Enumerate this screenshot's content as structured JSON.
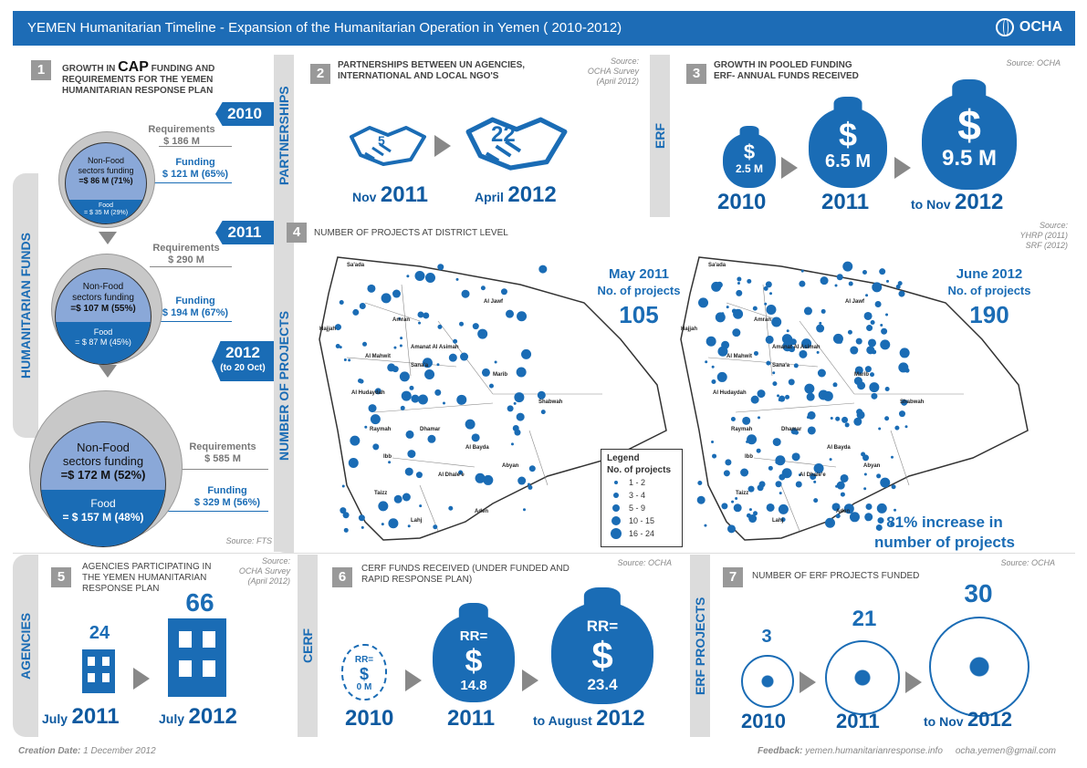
{
  "header": {
    "title": "YEMEN Humanitarian Timeline - Expansion of the Humanitarian Operation in Yemen ( 2010-2012)",
    "logo": "OCHA",
    "logo_icon": "un-globe-icon"
  },
  "section1": {
    "num": "1",
    "title_a": "GROWTH IN ",
    "title_cap": "CAP",
    "title_b": " FUNDING AND REQUIREMENTS FOR THE YEMEN HUMANITARIAN RESPONSE PLAN",
    "tab": "HUMANITARIAN FUNDS",
    "source": "Source: FTS",
    "years": [
      {
        "year": "2010",
        "year2": "",
        "req_label": "Requirements",
        "req": "$ 186 M",
        "fund_label": "Funding",
        "fund": "$ 121 M (65%)",
        "nonfood_a": "Non-Food",
        "nonfood_b": "sectors funding",
        "nonfood_val": "=$ 86 M (71%)",
        "food_label": "Food",
        "food_val": "= $ 35 M (29%)"
      },
      {
        "year": "2011",
        "year2": "",
        "req_label": "Requirements",
        "req": "$ 290 M",
        "fund_label": "Funding",
        "fund": "$ 194 M (67%)",
        "nonfood_a": "Non-Food",
        "nonfood_b": "sectors funding",
        "nonfood_val": "=$ 107 M (55%)",
        "food_label": "Food",
        "food_val": "= $ 87 M (45%)"
      },
      {
        "year": "2012",
        "year2": "(to 20 Oct)",
        "req_label": "Requirements",
        "req": "$ 585 M",
        "fund_label": "Funding",
        "fund": "$ 329 M (56%)",
        "nonfood_a": "Non-Food",
        "nonfood_b": "sectors funding",
        "nonfood_val": "=$ 172 M (52%)",
        "food_label": "Food",
        "food_val": "= $ 157 M (48%)"
      }
    ]
  },
  "section2": {
    "num": "2",
    "title": "PARTNERSHIPS BETWEEN UN AGENCIES, INTERNATIONAL AND LOCAL NGO's",
    "source_a": "Source:",
    "source_b": "OCHA Survey",
    "source_c": "(April 2012)",
    "tab": "PARTNERSHIPS",
    "items": [
      {
        "value": "5",
        "month": "Nov",
        "year": "2011",
        "icon": "handshake-icon"
      },
      {
        "value": "22",
        "month": "April",
        "year": "2012",
        "icon": "handshake-icon"
      }
    ]
  },
  "section3": {
    "num": "3",
    "title_a": "GROWTH IN POOLED FUNDING",
    "title_b": "ERF- ANNUAL FUNDS RECEIVED",
    "source": "Source: OCHA",
    "tab": "ERF",
    "bags": [
      {
        "value": "2.5 M",
        "prefix": "",
        "year": "2010",
        "icon": "money-bag-icon"
      },
      {
        "value": "6.5 M",
        "prefix": "",
        "year": "2011",
        "icon": "money-bag-icon"
      },
      {
        "value": "9.5 M",
        "prefix": "to Nov",
        "year": "2012",
        "icon": "money-bag-icon"
      }
    ]
  },
  "section4": {
    "num": "4",
    "title": "NUMBER OF PROJECTS AT DISTRICT LEVEL",
    "source_a": "Source:",
    "source_b": "YHRP (2011)",
    "source_c": "SRF    (2012)",
    "tab": "NUMBER OF PROJECTS",
    "map1": {
      "date": "May 2011",
      "label": "No. of projects",
      "value": "105"
    },
    "map2": {
      "date": "June 2012",
      "label": "No. of projects",
      "value": "190"
    },
    "increase_a": "81% increase in",
    "increase_b": "number of projects",
    "legend": {
      "title_a": "Legend",
      "title_b": "No. of projects",
      "items": [
        "1 - 2",
        "3 - 4",
        "5 - 9",
        "10 - 15",
        "16 - 24"
      ]
    },
    "places": [
      "Sa'ada",
      "Al Jawf",
      "Hajjah",
      "Amran",
      "Al Mahwit",
      "Amanat Al Asimah",
      "Sana'a",
      "Marib",
      "Al Hudaydah",
      "Raymah",
      "Dhamar",
      "Shabwah",
      "Ibb",
      "Al Bayda",
      "Al Dhale'e",
      "Abyan",
      "Taizz",
      "Lahj",
      "Aden"
    ]
  },
  "section5": {
    "num": "5",
    "title": "AGENCIES PARTICIPATING IN THE YEMEN HUMANITARIAN RESPONSE PLAN",
    "source_a": "Source:",
    "source_b": "OCHA Survey",
    "source_c": "(April 2012)",
    "tab": "AGENCIES",
    "items": [
      {
        "value": "24",
        "month": "July",
        "year": "2011",
        "icon": "building-icon"
      },
      {
        "value": "66",
        "month": "July",
        "year": "2012",
        "icon": "building-icon"
      }
    ]
  },
  "section6": {
    "num": "6",
    "title": "CERF FUNDS RECEIVED (UNDER FUNDED AND RAPID RESPONSE PLAN)",
    "source": "Source: OCHA",
    "tab": "CERF",
    "bags": [
      {
        "rr": "RR=",
        "value": "0 M",
        "prefix": "",
        "year": "2010"
      },
      {
        "rr": "RR=",
        "value": "14.8",
        "prefix": "",
        "year": "2011"
      },
      {
        "rr": "RR=",
        "value": "23.4",
        "prefix": "to August",
        "year": "2012"
      }
    ]
  },
  "section7": {
    "num": "7",
    "title": "NUMBER OF ERF PROJECTS FUNDED",
    "source": "Source: OCHA",
    "tab": "ERF PROJECTS",
    "items": [
      {
        "value": "3",
        "prefix": "",
        "year": "2010",
        "icon": "sector-wheel-icon"
      },
      {
        "value": "21",
        "prefix": "",
        "year": "2011",
        "icon": "sector-wheel-icon"
      },
      {
        "value": "30",
        "prefix": "to Nov",
        "year": "2012",
        "icon": "sector-wheel-icon"
      }
    ]
  },
  "footer": {
    "creation_label": "Creation Date:",
    "creation_value": "1 December 2012",
    "feedback_label": "Feedback:",
    "feedback_url": "yemen.humanitarianresponse.info",
    "email": "ocha.yemen@gmail.com"
  }
}
